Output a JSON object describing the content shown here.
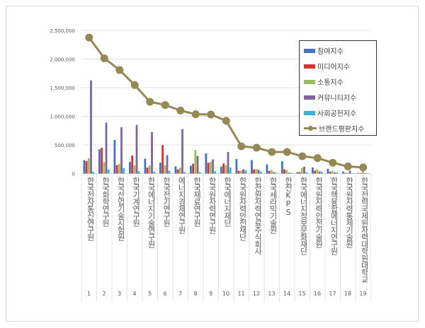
{
  "chart_data": {
    "type": "bar+line",
    "ylim": [
      0,
      2500000
    ],
    "yticks": [
      "0",
      "500,000",
      "1,000,000",
      "1,500,000",
      "2,000,000",
      "2,500,000"
    ],
    "grid": true,
    "legend_position": "right",
    "categories": [
      "한국전자통신연구원",
      "한국화학연구원",
      "한국산업기술시험원",
      "한국기계연구원",
      "한국에너지기술연구원",
      "한국전기연구원",
      "에너지경제연구원",
      "한국재료연구원",
      "한국원자력연구원",
      "한국에너지재단",
      "한국원자력안전재단",
      "한전원자력연료주식회사",
      "한국세라믹기술원",
      "한전KPS",
      "한국에너지정보문화재단",
      "한국원자력안전기술원",
      "한국핵융합에너지연구원",
      "한국원자력통제기술원",
      "한국전력국제원자력대학원대학교"
    ],
    "ranks": [
      "1",
      "2",
      "3",
      "4",
      "5",
      "6",
      "7",
      "8",
      "9",
      "10",
      "11",
      "12",
      "13",
      "14",
      "15",
      "16",
      "17",
      "18",
      "19"
    ],
    "series": [
      {
        "name": "참여지수",
        "type": "bar",
        "color": "#4472c4",
        "values": [
          234000,
          423000,
          588000,
          205000,
          259000,
          189000,
          127000,
          136000,
          353000,
          123000,
          254000,
          234000,
          160000,
          213000,
          25000,
          107000,
          82000,
          37000,
          12000
        ]
      },
      {
        "name": "미디어지수",
        "type": "bar",
        "color": "#e03131",
        "values": [
          218000,
          448000,
          148000,
          316000,
          103000,
          497000,
          74000,
          173000,
          189000,
          176000,
          49000,
          74000,
          45000,
          74000,
          25000,
          49000,
          33000,
          12000,
          8000
        ]
      },
      {
        "name": "소통지수",
        "type": "bar",
        "color": "#9bbb59",
        "values": [
          267000,
          197000,
          168000,
          144000,
          144000,
          144000,
          103000,
          411000,
          205000,
          148000,
          49000,
          78000,
          61000,
          61000,
          98000,
          74000,
          45000,
          12000,
          80000
        ]
      },
      {
        "name": "커뮤니티지수",
        "type": "bar",
        "color": "#8064a2",
        "values": [
          1627000,
          888000,
          809000,
          850000,
          723000,
          320000,
          777000,
          308000,
          247000,
          377000,
          74000,
          66000,
          25000,
          16000,
          119000,
          37000,
          20000,
          49000,
          8000
        ]
      },
      {
        "name": "사회공헌지수",
        "type": "bar",
        "color": "#31b6d6",
        "values": [
          33000,
          74000,
          95000,
          41000,
          33000,
          49000,
          25000,
          25000,
          41000,
          107000,
          57000,
          33000,
          16000,
          12000,
          20000,
          33000,
          16000,
          8000,
          8000
        ]
      },
      {
        "name": "브랜드평판지수",
        "type": "line",
        "color": "#938953",
        "values": [
          2375000,
          2013000,
          1808000,
          1545000,
          1253000,
          1196000,
          1101000,
          1035000,
          1031000,
          922000,
          475000,
          451000,
          377000,
          377000,
          303000,
          270000,
          189000,
          123000,
          107000
        ]
      }
    ]
  }
}
